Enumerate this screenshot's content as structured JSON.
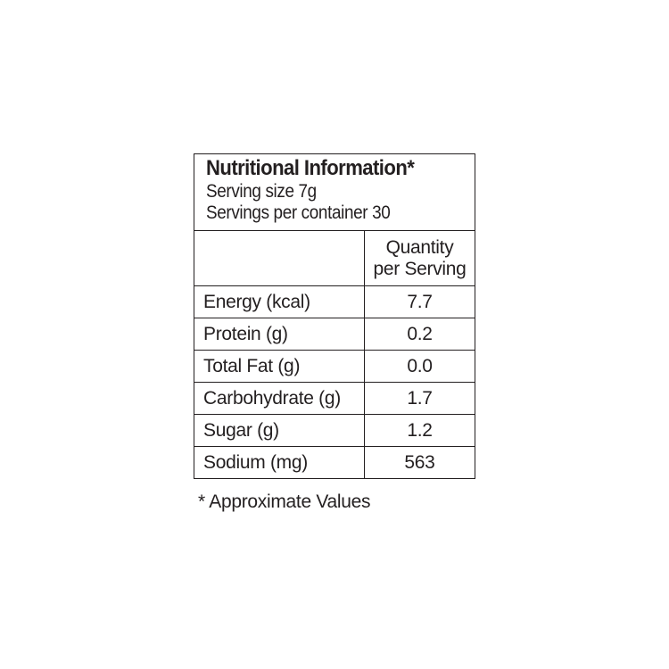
{
  "header": {
    "title": "Nutritional Information*",
    "serving_size": "Serving size 7g",
    "servings_per_container": "Servings per container 30"
  },
  "table": {
    "column_header": [
      "Quantity",
      "per Serving"
    ],
    "rows": [
      [
        "Energy (kcal)",
        "7.7"
      ],
      [
        "Protein (g)",
        "0.2"
      ],
      [
        "Total Fat (g)",
        "0.0"
      ],
      [
        "Carbohydrate (g)",
        "1.7"
      ],
      [
        "Sugar (g)",
        "1.2"
      ],
      [
        "Sodium (mg)",
        "563"
      ]
    ]
  },
  "footnote": "* Approximate Values"
}
